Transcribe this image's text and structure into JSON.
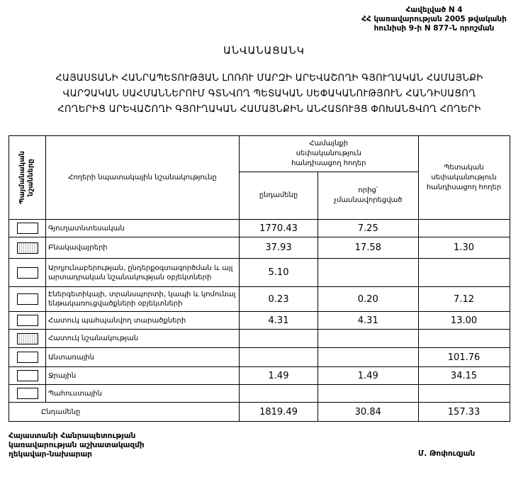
{
  "annex": {
    "line1": "Հավելված N 4",
    "line2": "ՀՀ կառավարության 2005 թվականի",
    "line3": "հունիսի 9-ի N 877-Ն որոշման"
  },
  "title": "ԱՆՎԱՆԱՑԱՆԿ",
  "subtitle": {
    "line1": "ՀԱՅԱՍՏԱՆԻ ՀԱՆՐԱՊԵՏՈՒԹՅԱՆ ԼՈՌՈՒ ՄԱՐԶԻ ԱՐԵՎԱՇՈՂԻ ԳՅՈՒՂԱԿԱՆ ՀԱՄԱՅՆՔԻ",
    "line2": "ՎԱՐՉԱԿԱՆ ՍԱՀՄԱՆՆԵՐՈՒՄ ԳՏՆՎՈՂ ՊԵՏԱԿԱՆ ՍԵՓԱԿԱՆՈՒԹՅՈՒՆ ՀԱՆԴԻՍԱՑՈՂ",
    "line3": "ՀՈՂԵՐԻՑ ԱՐԵՎԱՇՈՂԻ ԳՅՈՒՂԱԿԱՆ ՀԱՄԱՅՆՔԻՆ ԱՆՀԱՏՈՒՅՑ ՓՈԽԱՆՑՎՈՂ ՀՈՂԵՐԻ"
  },
  "table": {
    "headers": {
      "symbols": "Պայմանական նշանները",
      "purpose": "Հողերի նպատակային նշանակությունը",
      "community": "Համայնքի սեփականություն հանդիսացող հողեր",
      "total": "ընդամենը",
      "unprivatized": "որից՝ չմասնավորեցված",
      "state": "Պետական սեփականություն հանդիսացող հողեր"
    },
    "rows": [
      {
        "label": "Գյուղատնտեսական",
        "total": "1770.43",
        "unprivatized": "7.25",
        "state": ""
      },
      {
        "label": "Բնակավայրերի",
        "total": "37.93",
        "unprivatized": "17.58",
        "state": "1.30"
      },
      {
        "label": "Արդյունաբերության, ընդերքօգտագործման և այլ արտադրական նշանակության օբյեկտների",
        "total": "5.10",
        "unprivatized": "",
        "state": ""
      },
      {
        "label": "Էներգետիկայի, տրանսպորտի, կապի և կոմունալ ենթակառուցվածքների օբյեկտների",
        "total": "0.23",
        "unprivatized": "0.20",
        "state": "7.12"
      },
      {
        "label": "Հատուկ պահպանվող տարածքների",
        "total": "4.31",
        "unprivatized": "4.31",
        "state": "13.00"
      },
      {
        "label": "Հատուկ նշանակության",
        "total": "",
        "unprivatized": "",
        "state": ""
      },
      {
        "label": "Անտառային",
        "total": "",
        "unprivatized": "",
        "state": "101.76"
      },
      {
        "label": "Ջրային",
        "total": "1.49",
        "unprivatized": "1.49",
        "state": "34.15"
      },
      {
        "label": "Պահուստային",
        "total": "",
        "unprivatized": "",
        "state": ""
      }
    ],
    "totals": {
      "label": "Ընդամենը",
      "total": "1819.49",
      "unprivatized": "30.84",
      "state": "157.33"
    }
  },
  "footer": {
    "line1": "Հայաստանի Հանրապետության",
    "line2": "կառավարության աշխատակազմի",
    "line3": "ղեկավար-նախարար",
    "signatory": "Մ. Թոփուզյան"
  }
}
